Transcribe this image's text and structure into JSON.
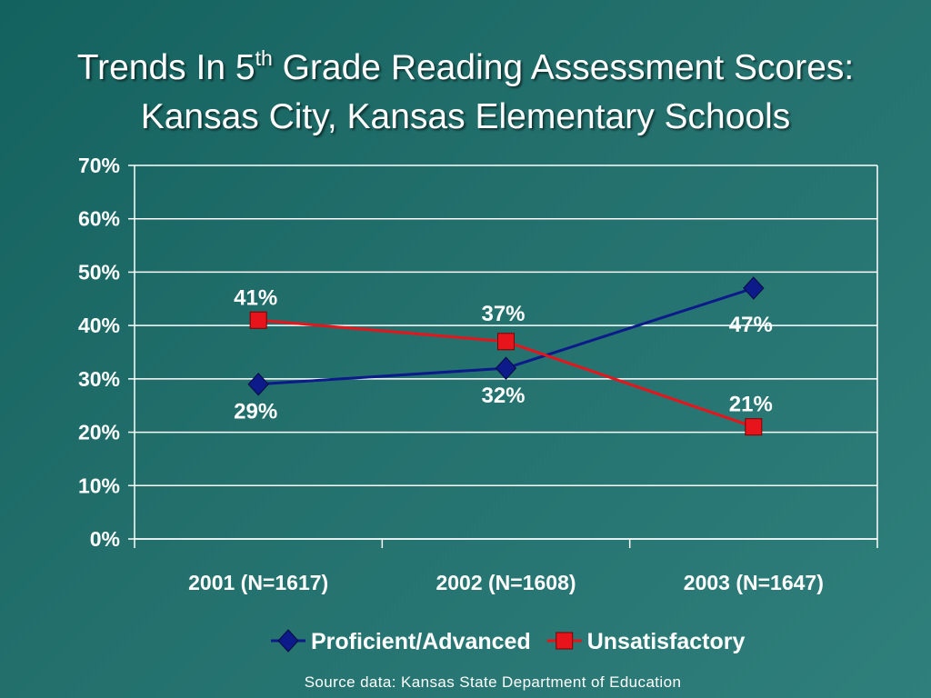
{
  "title": {
    "line1_before": "Trends In 5",
    "line1_sup": "th",
    "line1_after": " Grade Reading Assessment Scores:",
    "line2": "Kansas City, Kansas Elementary Schools"
  },
  "source": "Source data: Kansas State Department of Education",
  "colors": {
    "proficient": "#0c1a8a",
    "unsatisfactory": "#e8141b",
    "grid": "#ffffff"
  },
  "chart_data": {
    "type": "line",
    "categories": [
      "2001 (N=1617)",
      "2002 (N=1608)",
      "2003 (N=1647)"
    ],
    "y_ticks": [
      "0%",
      "10%",
      "20%",
      "30%",
      "40%",
      "50%",
      "60%",
      "70%"
    ],
    "ylim": [
      0,
      70
    ],
    "grid": true,
    "legend_position": "bottom",
    "series": [
      {
        "name": "Proficient/Advanced",
        "values": [
          29,
          32,
          47
        ],
        "labels": [
          "29%",
          "32%",
          "47%"
        ],
        "marker": "diamond",
        "color": "#0c1a8a"
      },
      {
        "name": "Unsatisfactory",
        "values": [
          41,
          37,
          21
        ],
        "labels": [
          "41%",
          "37%",
          "21%"
        ],
        "marker": "square",
        "color": "#e8141b"
      }
    ]
  }
}
